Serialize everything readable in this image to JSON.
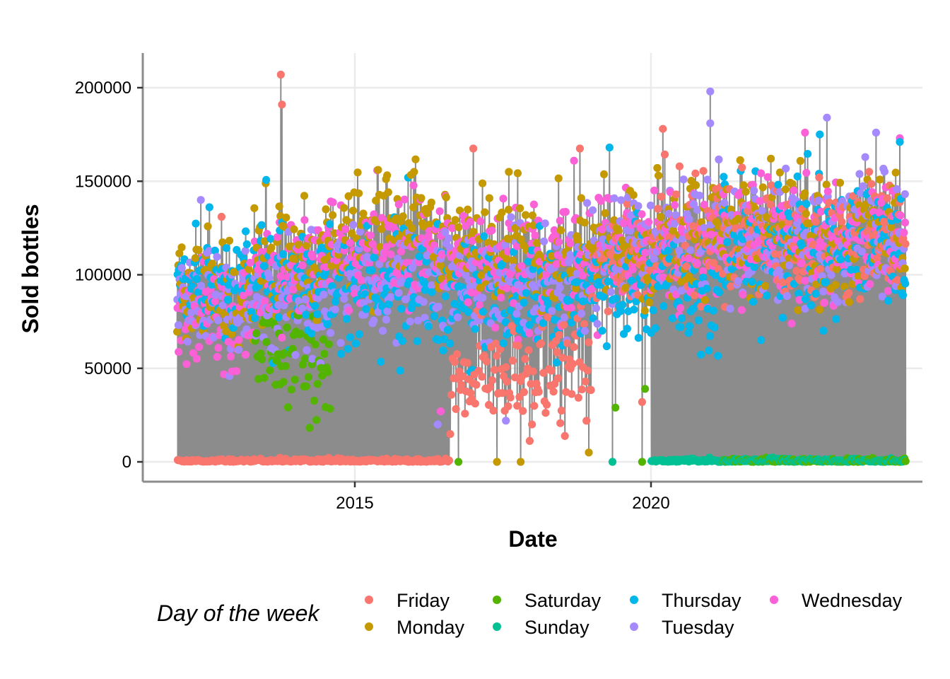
{
  "chart_data": {
    "type": "scatter",
    "subtype": "lollipop-time-series",
    "title": "",
    "xlabel": "Date",
    "ylabel": "Sold bottles",
    "xlim": [
      2011.4,
      2025.0
    ],
    "ylim": [
      -8000,
      218000
    ],
    "x_ticks": [
      2015,
      2020
    ],
    "x_tick_labels": [
      "2015",
      "2020"
    ],
    "y_ticks": [
      0,
      50000,
      100000,
      150000,
      200000
    ],
    "y_tick_labels": [
      "0",
      "50000",
      "100000",
      "150000",
      "200000"
    ],
    "grid": true,
    "stem_color": "#8c8c8c",
    "date_range": [
      2012.0,
      2024.3
    ],
    "legend": {
      "title": "Day of the week",
      "placement": "bottom",
      "entries": [
        {
          "name": "Friday",
          "color": "#F8766D"
        },
        {
          "name": "Monday",
          "color": "#C49A00"
        },
        {
          "name": "Saturday",
          "color": "#53B400"
        },
        {
          "name": "Sunday",
          "color": "#00C094"
        },
        {
          "name": "Thursday",
          "color": "#00B6EB"
        },
        {
          "name": "Tuesday",
          "color": "#A58AFF"
        },
        {
          "name": "Wednesday",
          "color": "#FB61D7"
        }
      ]
    },
    "series_profile": {
      "note": "Daily sales; approximate per-period level (typical value) and spread per weekday, read from the plot",
      "periods": [
        {
          "from": 2012.0,
          "to": 2013.3,
          "Monday": 90000,
          "Tuesday": 85000,
          "Wednesday": 78000,
          "Thursday": 95000,
          "Friday": 0,
          "Saturday": null,
          "Sunday": null,
          "spread": 15000
        },
        {
          "from": 2013.3,
          "to": 2014.6,
          "Monday": 110000,
          "Tuesday": 88000,
          "Wednesday": 100000,
          "Thursday": 98000,
          "Friday": 0,
          "Saturday": 60000,
          "Sunday": null,
          "spread": 17000
        },
        {
          "from": 2014.6,
          "to": 2016.6,
          "Monday": 122000,
          "Tuesday": 100000,
          "Wednesday": 112000,
          "Thursday": 90000,
          "Friday": 0,
          "Saturday": null,
          "Sunday": null,
          "spread": 16000
        },
        {
          "from": 2016.6,
          "to": 2019.0,
          "Monday": 112000,
          "Tuesday": 95000,
          "Wednesday": 108000,
          "Thursday": 88000,
          "Friday": 48000,
          "Saturday": null,
          "Sunday": null,
          "spread": 15000
        },
        {
          "from": 2019.0,
          "to": 2020.0,
          "Monday": 118000,
          "Tuesday": 110000,
          "Wednesday": 112000,
          "Thursday": 95000,
          "Friday": 105000,
          "Saturday": null,
          "Sunday": null,
          "spread": 15000
        },
        {
          "from": 2020.0,
          "to": 2021.2,
          "Monday": 122000,
          "Tuesday": 118000,
          "Wednesday": 115000,
          "Thursday": 90000,
          "Friday": 120000,
          "Saturday": null,
          "Sunday": 0,
          "spread": 16000
        },
        {
          "from": 2021.2,
          "to": 2024.3,
          "Monday": 122000,
          "Tuesday": 118000,
          "Wednesday": 120000,
          "Thursday": 115000,
          "Friday": 118000,
          "Saturday": 0,
          "Sunday": 0,
          "spread": 17000
        }
      ],
      "notable_points": [
        {
          "date": 2013.75,
          "day": "Friday",
          "value": 207000
        },
        {
          "date": 2013.77,
          "day": "Friday",
          "value": 191000
        },
        {
          "date": 2021.0,
          "day": "Tuesday",
          "value": 198000
        },
        {
          "date": 2021.0,
          "day": "Tuesday",
          "value": 181000
        },
        {
          "date": 2020.2,
          "day": "Friday",
          "value": 178000
        },
        {
          "date": 2022.97,
          "day": "Tuesday",
          "value": 184000
        },
        {
          "date": 2022.6,
          "day": "Wednesday",
          "value": 176000
        },
        {
          "date": 2022.85,
          "day": "Thursday",
          "value": 175000
        },
        {
          "date": 2023.8,
          "day": "Tuesday",
          "value": 176000
        },
        {
          "date": 2024.2,
          "day": "Wednesday",
          "value": 173000
        },
        {
          "date": 2024.2,
          "day": "Thursday",
          "value": 171000
        },
        {
          "date": 2019.3,
          "day": "Thursday",
          "value": 168000
        },
        {
          "date": 2018.8,
          "day": "Friday",
          "value": 167500
        },
        {
          "date": 2017.0,
          "day": "Friday",
          "value": 167500
        },
        {
          "date": 2018.7,
          "day": "Wednesday",
          "value": 161000
        },
        {
          "date": 2016.0,
          "day": "Monday",
          "value": 155000
        },
        {
          "date": 2017.6,
          "day": "Monday",
          "value": 155000
        },
        {
          "date": 2015.9,
          "day": "Thursday",
          "value": 152000
        },
        {
          "date": 2012.4,
          "day": "Tuesday",
          "value": 140000
        },
        {
          "date": 2012.75,
          "day": "Friday",
          "value": 131000
        },
        {
          "date": 2016.75,
          "day": "Saturday",
          "value": 0
        },
        {
          "date": 2017.4,
          "day": "Monday",
          "value": 0
        },
        {
          "date": 2017.8,
          "day": "Monday",
          "value": 0
        },
        {
          "date": 2017.55,
          "day": "Tuesday",
          "value": 22000
        },
        {
          "date": 2016.4,
          "day": "Tuesday",
          "value": 20000
        },
        {
          "date": 2016.45,
          "day": "Wednesday",
          "value": 27000
        },
        {
          "date": 2019.4,
          "day": "Saturday",
          "value": 29000
        },
        {
          "date": 2019.9,
          "day": "Saturday",
          "value": 39000
        },
        {
          "date": 2019.85,
          "day": "Friday",
          "value": 32000
        },
        {
          "date": 2018.95,
          "day": "Monday",
          "value": 5000
        },
        {
          "date": 2019.35,
          "day": "Sunday",
          "value": 0
        },
        {
          "date": 2019.85,
          "day": "Saturday",
          "value": 0
        }
      ]
    }
  }
}
